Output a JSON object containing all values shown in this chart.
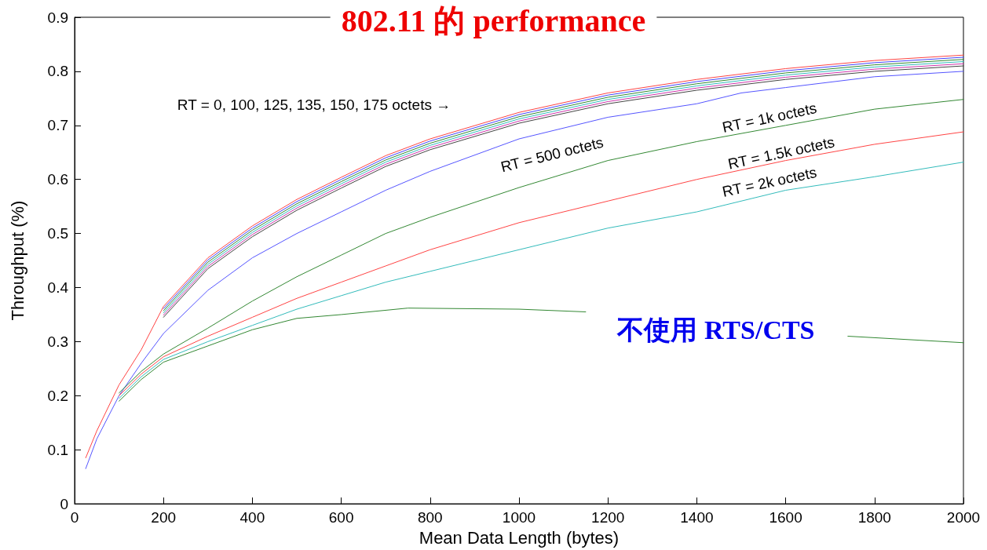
{
  "chart_data": {
    "type": "line",
    "title": "802.11 的 performance",
    "xlabel": "Mean Data Length (bytes)",
    "ylabel": "Throughput (%)",
    "xlim": [
      0,
      2000
    ],
    "xticks": [
      0,
      200,
      400,
      600,
      800,
      1000,
      1200,
      1400,
      1600,
      1800,
      2000
    ],
    "ylim": [
      0,
      0.9
    ],
    "yticks": [
      0,
      0.1,
      0.2,
      0.3,
      0.4,
      0.5,
      0.6,
      0.7,
      0.8,
      0.9
    ],
    "grid": false,
    "marker": "none",
    "line_style": "solid",
    "series": [
      {
        "color": "#ff4444",
        "x": [
          25,
          50,
          100,
          150,
          200,
          300,
          400,
          500,
          600,
          700,
          800,
          1000,
          1200,
          1400,
          1600,
          1800,
          2000
        ],
        "values": [
          0.085,
          0.135,
          0.22,
          0.285,
          0.365,
          0.455,
          0.514,
          0.563,
          0.604,
          0.644,
          0.675,
          0.724,
          0.76,
          0.785,
          0.805,
          0.82,
          0.83
        ]
      },
      {
        "color": "#4444ff",
        "x": [
          200,
          300,
          400,
          500,
          600,
          700,
          800,
          1000,
          1200,
          1400,
          1600,
          1800,
          2000
        ],
        "values": [
          0.361,
          0.451,
          0.51,
          0.559,
          0.6,
          0.64,
          0.671,
          0.72,
          0.756,
          0.781,
          0.801,
          0.816,
          0.826
        ]
      },
      {
        "color": "#338833",
        "x": [
          200,
          300,
          400,
          500,
          600,
          700,
          800,
          1000,
          1200,
          1400,
          1600,
          1800,
          2000
        ],
        "values": [
          0.357,
          0.447,
          0.506,
          0.555,
          0.596,
          0.636,
          0.667,
          0.716,
          0.752,
          0.777,
          0.797,
          0.812,
          0.822
        ]
      },
      {
        "color": "#33bbbb",
        "x": [
          200,
          300,
          400,
          500,
          600,
          700,
          800,
          1000,
          1200,
          1400,
          1600,
          1800,
          2000
        ],
        "values": [
          0.353,
          0.443,
          0.502,
          0.551,
          0.592,
          0.632,
          0.663,
          0.712,
          0.748,
          0.773,
          0.793,
          0.808,
          0.818
        ]
      },
      {
        "color": "#cc33aa",
        "x": [
          200,
          300,
          400,
          500,
          600,
          700,
          800,
          1000,
          1200,
          1400,
          1600,
          1800,
          2000
        ],
        "values": [
          0.349,
          0.439,
          0.498,
          0.547,
          0.588,
          0.628,
          0.659,
          0.708,
          0.744,
          0.769,
          0.789,
          0.804,
          0.814
        ]
      },
      {
        "color": "#444444",
        "x": [
          200,
          300,
          400,
          500,
          600,
          700,
          800,
          1000,
          1200,
          1400,
          1600,
          1800,
          2000
        ],
        "values": [
          0.345,
          0.435,
          0.494,
          0.543,
          0.584,
          0.624,
          0.655,
          0.704,
          0.74,
          0.765,
          0.785,
          0.8,
          0.81
        ]
      },
      {
        "color": "#5555ff",
        "x": [
          25,
          50,
          100,
          150,
          200,
          300,
          400,
          500,
          600,
          700,
          800,
          1000,
          1200,
          1400,
          1500,
          1600,
          1800,
          2000
        ],
        "values": [
          0.065,
          0.12,
          0.2,
          0.26,
          0.315,
          0.395,
          0.455,
          0.5,
          0.54,
          0.58,
          0.615,
          0.675,
          0.715,
          0.74,
          0.76,
          0.77,
          0.79,
          0.8
        ]
      },
      {
        "color": "#338833",
        "x": [
          100,
          150,
          200,
          300,
          400,
          500,
          600,
          700,
          800,
          1000,
          1200,
          1400,
          1600,
          1800,
          2000
        ],
        "values": [
          0.205,
          0.245,
          0.277,
          0.325,
          0.375,
          0.42,
          0.46,
          0.5,
          0.53,
          0.585,
          0.635,
          0.67,
          0.7,
          0.73,
          0.748
        ]
      },
      {
        "color": "#ff4444",
        "x": [
          100,
          150,
          200,
          300,
          400,
          500,
          600,
          700,
          800,
          1000,
          1200,
          1400,
          1600,
          1800,
          2000
        ],
        "values": [
          0.2,
          0.24,
          0.272,
          0.31,
          0.345,
          0.38,
          0.41,
          0.44,
          0.47,
          0.52,
          0.56,
          0.6,
          0.635,
          0.665,
          0.688
        ]
      },
      {
        "color": "#33bbbb",
        "x": [
          100,
          150,
          200,
          300,
          400,
          500,
          600,
          700,
          800,
          1000,
          1200,
          1400,
          1600,
          1800,
          2000
        ],
        "values": [
          0.195,
          0.235,
          0.267,
          0.3,
          0.33,
          0.36,
          0.385,
          0.41,
          0.43,
          0.47,
          0.51,
          0.54,
          0.58,
          0.605,
          0.632
        ]
      },
      {
        "color": "#338833",
        "x": [
          100,
          150,
          200,
          300,
          400,
          500,
          600,
          750,
          1000,
          1150,
          1450,
          1740,
          2000
        ],
        "values": [
          0.19,
          0.23,
          0.262,
          0.292,
          0.322,
          0.343,
          0.35,
          0.362,
          0.36,
          0.355,
          null,
          0.31,
          0.298
        ]
      }
    ],
    "annotations": [
      "RT = 0, 100, 125, 135, 150, 175 octets →",
      "RT = 500 octets",
      "RT = 1k octets",
      "RT = 1.5k octets",
      "RT = 2k octets",
      "不使用 RTS/CTS"
    ]
  }
}
